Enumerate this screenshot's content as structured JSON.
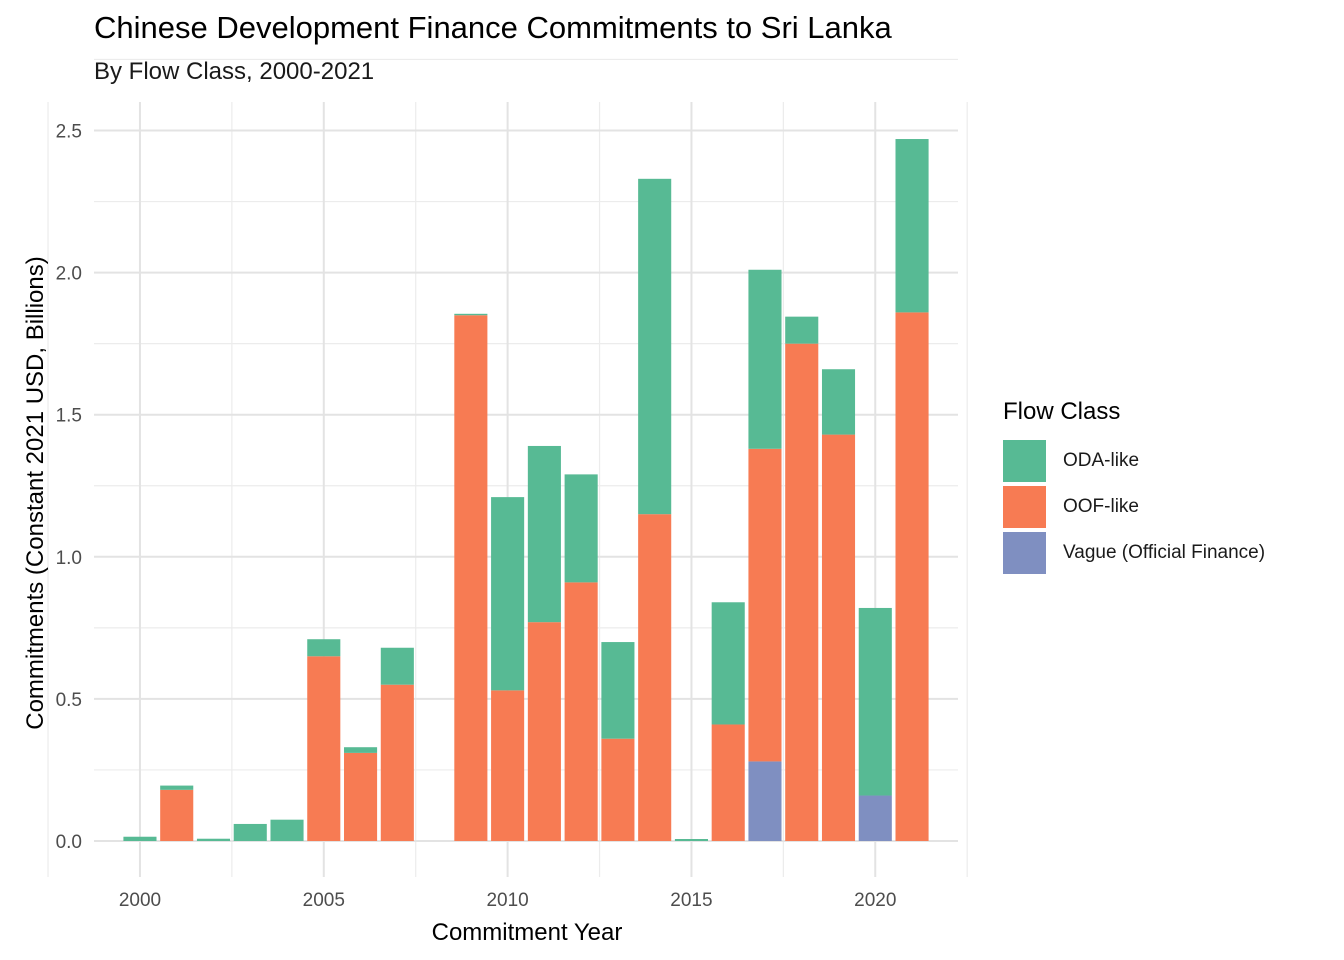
{
  "chart_data": {
    "type": "bar",
    "stacked": true,
    "title": "Chinese Development Finance Commitments to Sri Lanka",
    "subtitle": "By Flow Class, 2000-2021",
    "xlabel": "Commitment Year",
    "ylabel": "Commitments (Constant 2021 USD, Billions)",
    "x": [
      2000,
      2001,
      2002,
      2003,
      2004,
      2005,
      2006,
      2007,
      2008,
      2009,
      2010,
      2011,
      2012,
      2013,
      2014,
      2015,
      2016,
      2017,
      2018,
      2019,
      2020,
      2021
    ],
    "xticks": [
      "2000",
      "2005",
      "2010",
      "2015",
      "2020"
    ],
    "yticks": [
      "0.0",
      "0.5",
      "1.0",
      "1.5",
      "2.0",
      "2.5"
    ],
    "ylim": [
      0,
      2.5
    ],
    "grid": true,
    "legend_title": "Flow Class",
    "legend_position": "right",
    "series": [
      {
        "name": "Vague (Official Finance)",
        "color": "#7f8fc1",
        "values": [
          0,
          0,
          0,
          0,
          0,
          0,
          0,
          0,
          0,
          0,
          0,
          0,
          0,
          0,
          0,
          0,
          0,
          0.28,
          0,
          0,
          0.16,
          0
        ]
      },
      {
        "name": "OOF-like",
        "color": "#f77b53",
        "values": [
          0,
          0.18,
          0,
          0,
          0,
          0.65,
          0.31,
          0.55,
          0,
          1.85,
          0.53,
          0.77,
          0.91,
          0.36,
          1.15,
          0,
          0.41,
          1.1,
          1.75,
          1.43,
          0,
          1.86
        ]
      },
      {
        "name": "ODA-like",
        "color": "#57ba94",
        "values": [
          0.015,
          0.015,
          0.008,
          0.06,
          0.075,
          0.06,
          0.02,
          0.13,
          0,
          0.005,
          0.68,
          0.62,
          0.38,
          0.34,
          1.18,
          0.007,
          0.43,
          0.63,
          0.095,
          0.23,
          0.66,
          0.61
        ]
      }
    ],
    "legend_order": [
      "ODA-like",
      "OOF-like",
      "Vague (Official Finance)"
    ]
  }
}
